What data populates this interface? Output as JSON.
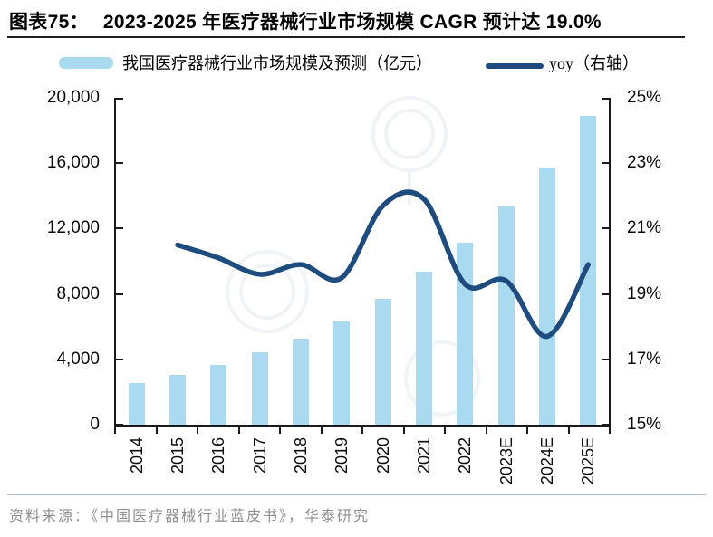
{
  "header": {
    "label": "图表75：",
    "title": "2023-2025 年医疗器械行业市场规模 CAGR 预计达 19.0%"
  },
  "legend": {
    "bar_label": "我国医疗器械行业市场规模及预测（亿元）",
    "line_label": "yoy（右轴）"
  },
  "source": "资料来源：《中国医疗器械行业蓝皮书》，华泰研究",
  "colors": {
    "bar": "#A9DAF0",
    "line": "#1E4C7E",
    "axis": "#1a1a1a",
    "source_text": "#8f8f8f",
    "separator": "#a6bccb",
    "watermark": "#7a9ab5"
  },
  "chart_data": {
    "type": "bar+line",
    "title": "2023-2025 年医疗器械行业市场规模 CAGR 预计达 19.0%",
    "categories": [
      "2014",
      "2015",
      "2016",
      "2017",
      "2018",
      "2019",
      "2020",
      "2021",
      "2022",
      "2023E",
      "2024E",
      "2025E"
    ],
    "series": [
      {
        "name": "我国医疗器械行业市场规模及预测（亿元）",
        "type": "bar",
        "axis": "left",
        "values": [
          2550,
          3060,
          3670,
          4420,
          5280,
          6340,
          7700,
          9360,
          11140,
          13350,
          15730,
          18900
        ]
      },
      {
        "name": "yoy（右轴）",
        "type": "line",
        "axis": "right",
        "values": [
          null,
          20.5,
          20.1,
          19.6,
          19.9,
          19.5,
          21.7,
          21.9,
          19.3,
          19.4,
          17.7,
          19.9
        ]
      }
    ],
    "left_axis": {
      "min": 0,
      "max": 20000,
      "step": 4000,
      "tick_labels": [
        "20,000",
        "16,000",
        "12,000",
        "8,000",
        "4,000",
        "0"
      ]
    },
    "right_axis": {
      "min": 15,
      "max": 25,
      "step": 2,
      "tick_labels": [
        "25%",
        "23%",
        "21%",
        "19%",
        "17%",
        "15%"
      ]
    },
    "grid": false,
    "legend_position": "top",
    "xlabel": "",
    "ylabel_left": "亿元",
    "ylabel_right": "%"
  }
}
